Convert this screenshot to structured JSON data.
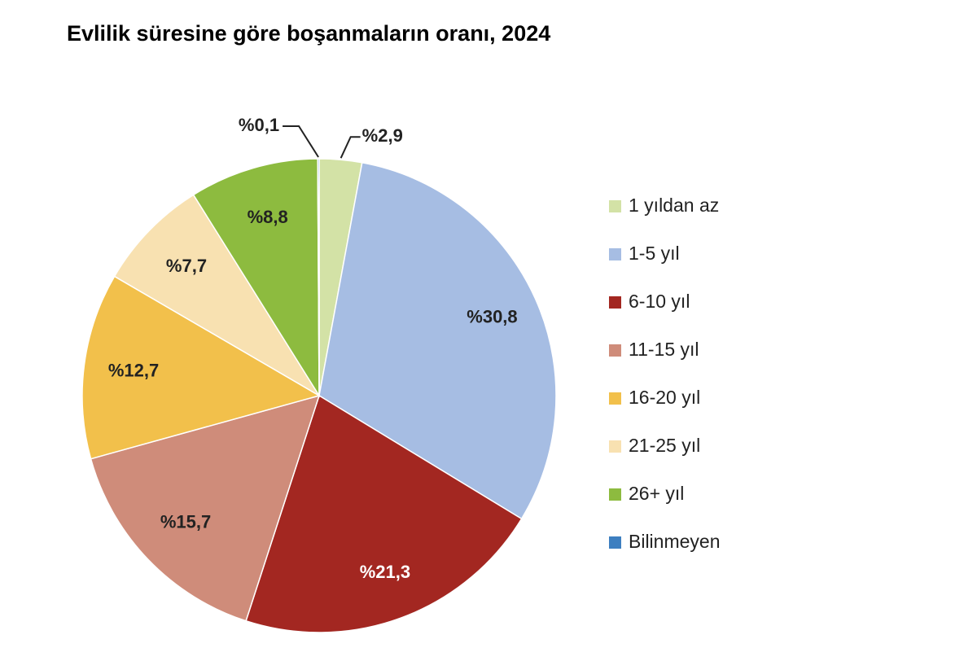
{
  "chart_data": {
    "type": "pie",
    "title": "Evlilik süresine göre boşanmaların oranı, 2024",
    "slices": [
      {
        "name": "1 yıldan az",
        "value": 2.9,
        "label": "%2,9",
        "color": "#d3e2a6",
        "label_color": "#222222"
      },
      {
        "name": "1-5 yıl",
        "value": 30.8,
        "label": "%30,8",
        "color": "#a6bde3",
        "label_color": "#222222"
      },
      {
        "name": "6-10 yıl",
        "value": 21.3,
        "label": "%21,3",
        "color": "#a32721",
        "label_color": "#ffffff"
      },
      {
        "name": "11-15 yıl",
        "value": 15.7,
        "label": "%15,7",
        "color": "#cf8c7a",
        "label_color": "#222222"
      },
      {
        "name": "16-20 yıl",
        "value": 12.7,
        "label": "%12,7",
        "color": "#f2c04b",
        "label_color": "#222222"
      },
      {
        "name": "21-25 yıl",
        "value": 7.7,
        "label": "%7,7",
        "color": "#f8e1b1",
        "label_color": "#222222"
      },
      {
        "name": "26+ yıl",
        "value": 8.8,
        "label": "%8,8",
        "color": "#8dbb3f",
        "label_color": "#222222"
      },
      {
        "name": "Bilinmeyen",
        "value": 0.1,
        "label": "%0,1",
        "color": "#3d7fc0",
        "label_color": "#222222"
      }
    ],
    "legend_position": "right"
  }
}
